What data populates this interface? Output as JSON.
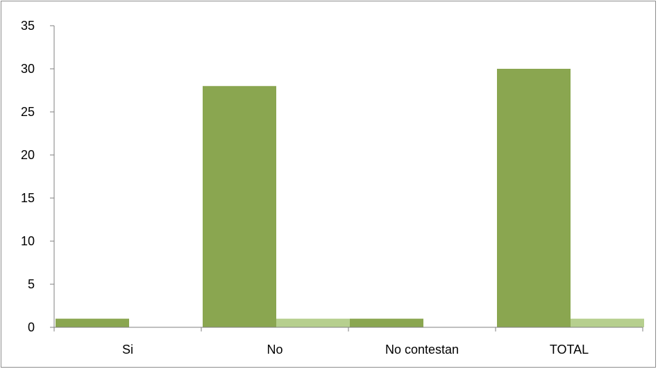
{
  "chart_data": {
    "type": "bar",
    "title": "",
    "xlabel": "",
    "ylabel": "",
    "categories": [
      "Si",
      "No",
      "No contestan",
      "TOTAL"
    ],
    "series": [
      {
        "values": [
          1,
          28,
          1,
          30
        ],
        "color": "#8aa650"
      },
      {
        "values": [
          0,
          1,
          0,
          1
        ],
        "color": "#b6cf8e"
      }
    ],
    "ylim": [
      0,
      35
    ],
    "yticks": [
      0,
      5,
      10,
      15,
      20,
      25,
      30,
      35
    ],
    "grid": false,
    "legend": "none",
    "axis_color": "#7f7f7f"
  }
}
